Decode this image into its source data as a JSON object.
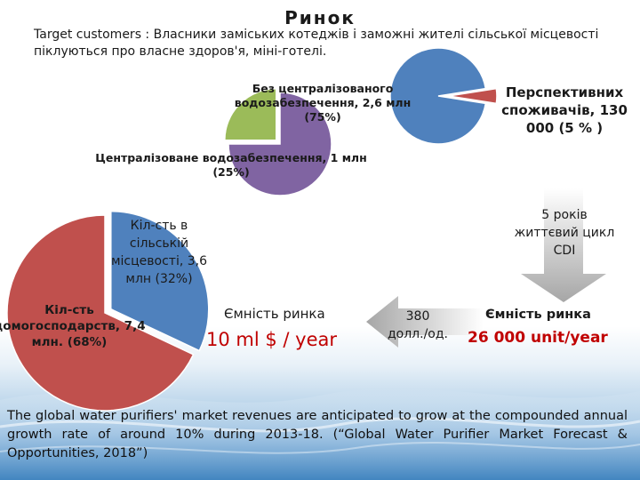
{
  "title": "Ринок",
  "target_customers": "Target customers : Власники заміських котеджів і заможні жителі сільської місцевості піклуються про власне здоров'я, міні-готелі.",
  "pie_households": {
    "rural_label": "Кіл-сть в сільській місцевості, 3,6 млн (32%)",
    "rural_share": 32,
    "total_label": "Кіл-сть домогосподарств, 7,4 млн. (68%)",
    "other_share": 68,
    "colors": {
      "rural": "#4f81bd",
      "other": "#c0504d"
    }
  },
  "pie_water": {
    "no_central_label": "Без централізованого водозабезпечення, 2,6 млн (75%)",
    "no_central_share": 75,
    "central_label": "Централізоване водозабезпечення, 1 млн (25%)",
    "central_share": 25,
    "colors": {
      "no_central": "#8064a2",
      "central": "#9bbb59"
    }
  },
  "pie_prospective": {
    "label": "Перспективних споживачів, 130 000 (5 % )",
    "share": 5,
    "colors": {
      "rest": "#4f81bd",
      "prospective": "#c0504d"
    }
  },
  "lifecycle": "5 років життєвий цикл CDI",
  "capacity_label_left": "Ємність ринка",
  "capacity_value_left": "10 ml $ / year",
  "price_value": "380",
  "price_unit": "долл./од.",
  "capacity_label_right": "Ємність ринка",
  "capacity_value_right": "26 000 unit/year",
  "footer": "The global water purifiers' market revenues are anticipated to grow at the compounded annual growth rate of around 10% during 2013-18. (“Global Water Purifier Market Forecast & Opportunities, 2018”)"
}
